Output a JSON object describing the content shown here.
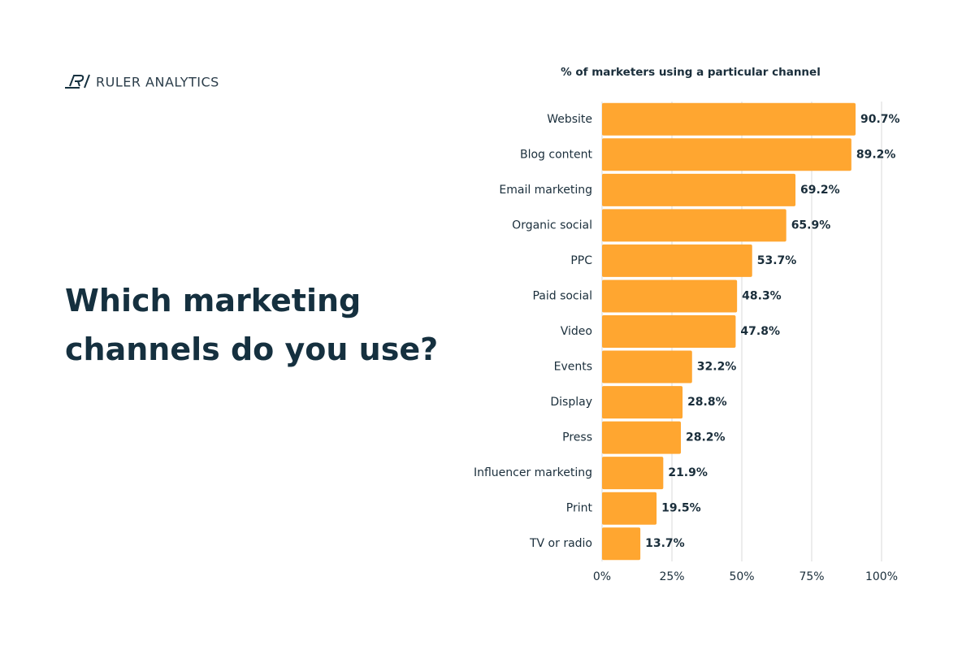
{
  "brand": "RULER ANALYTICS",
  "headline": "Which marketing channels do you use?",
  "chart_data": {
    "type": "bar",
    "orientation": "horizontal",
    "title": "% of marketers using a particular channel",
    "categories": [
      "Website",
      "Blog content",
      "Email marketing",
      "Organic social",
      "PPC",
      "Paid social",
      "Video",
      "Events",
      "Display",
      "Press",
      "Influencer marketing",
      "Print",
      "TV or radio"
    ],
    "values": [
      90.7,
      89.2,
      69.2,
      65.9,
      53.7,
      48.3,
      47.8,
      32.2,
      28.8,
      28.2,
      21.9,
      19.5,
      13.7
    ],
    "value_labels": [
      "90.7%",
      "89.2%",
      "69.2%",
      "65.9%",
      "53.7%",
      "48.3%",
      "47.8%",
      "32.2%",
      "28.8%",
      "28.2%",
      "21.9%",
      "19.5%",
      "13.7%"
    ],
    "color": "#ffa630",
    "xlim": [
      0,
      100
    ],
    "xticks": [
      {
        "value": 0,
        "label": "0%"
      },
      {
        "value": 25,
        "label": "25%"
      },
      {
        "value": 50,
        "label": "50%"
      },
      {
        "value": 75,
        "label": "75%"
      },
      {
        "value": 100,
        "label": "100%"
      }
    ],
    "grid": true
  }
}
